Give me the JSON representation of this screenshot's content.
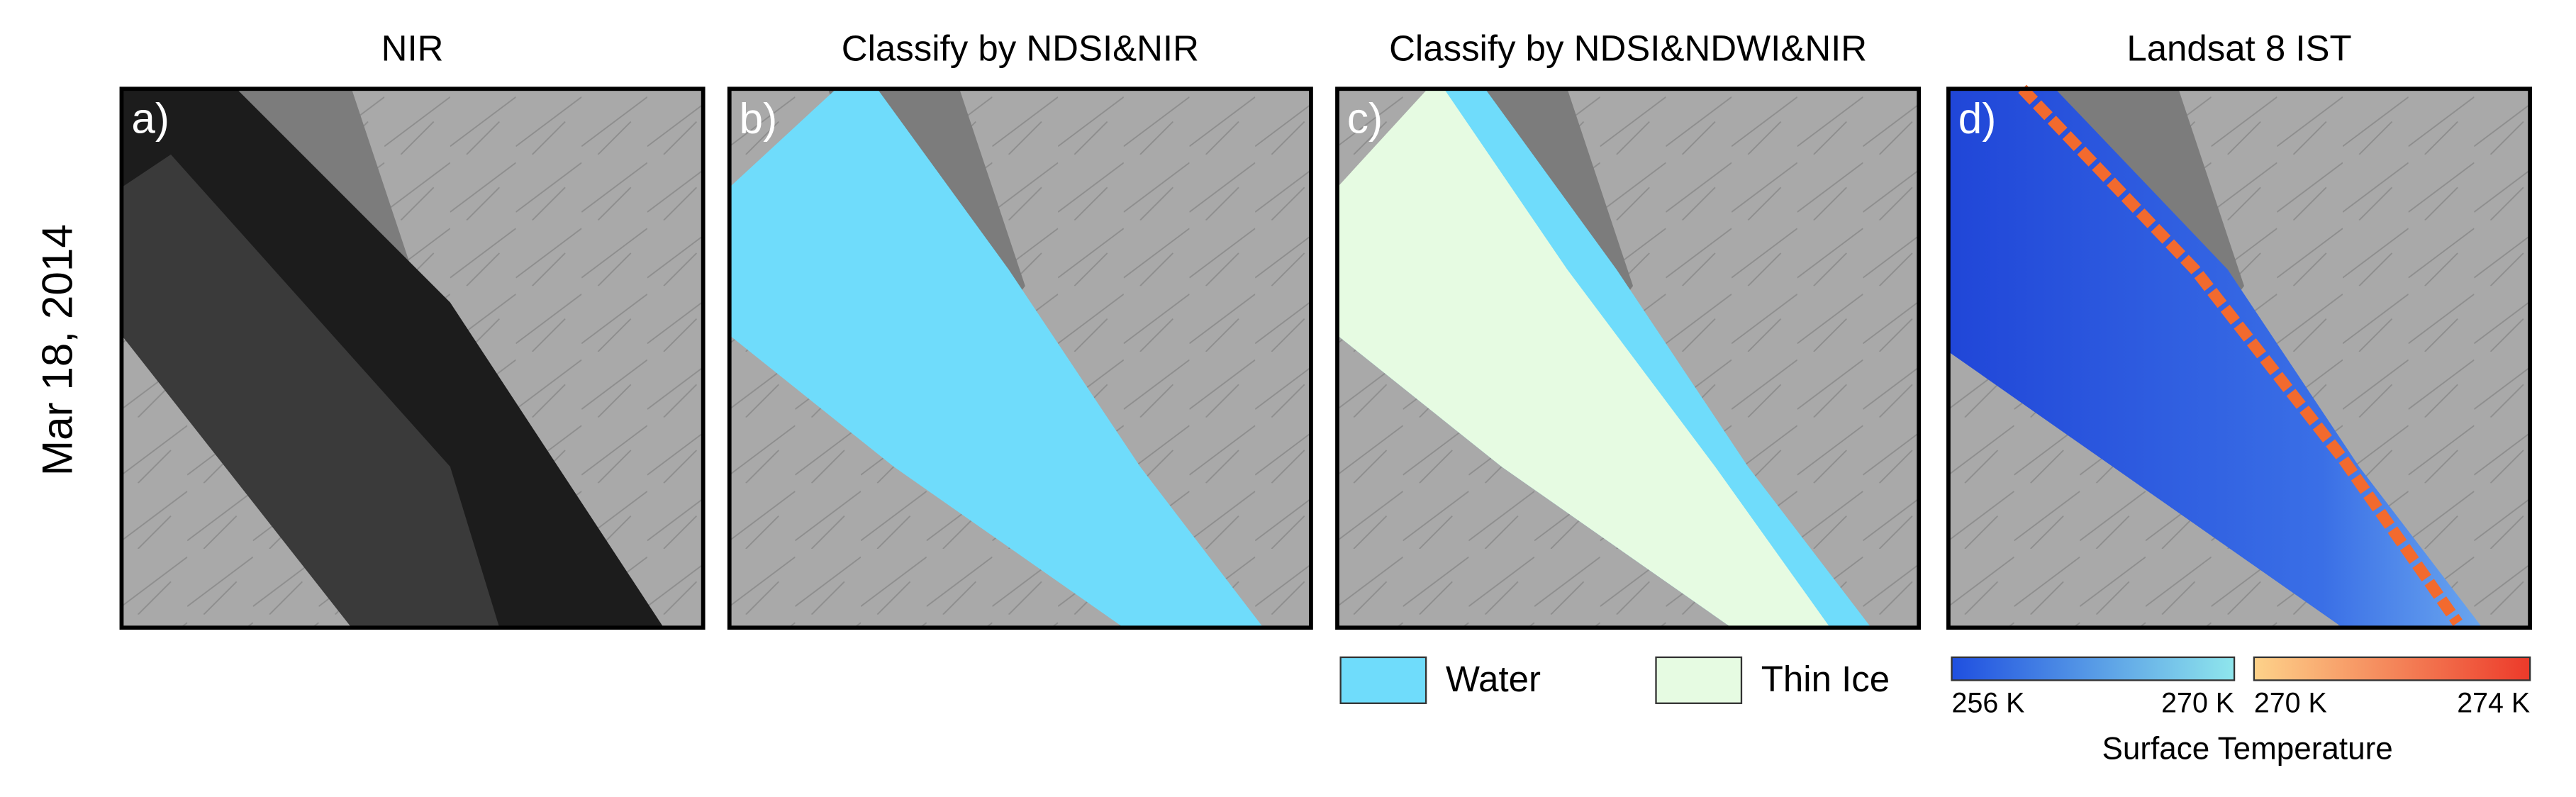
{
  "row_label": "Mar 18, 2014",
  "panels": [
    {
      "letter": "a)",
      "title": "NIR"
    },
    {
      "letter": "b)",
      "title": "Classify by NDSI&NIR"
    },
    {
      "letter": "c)",
      "title": "Classify by NDSI&NDWI&NIR"
    },
    {
      "letter": "d)",
      "title": "Landsat 8 IST"
    }
  ],
  "legend": [
    {
      "label": "Water",
      "color": "#6fdcfb"
    },
    {
      "label": "Thin Ice",
      "color": "#e6fbe2"
    }
  ],
  "colorbars": [
    {
      "from_label": "256 K",
      "to_label": "270 K",
      "colors": [
        "#1f4fe0",
        "#8fe6ec"
      ]
    },
    {
      "from_label": "270 K",
      "to_label": "274 K",
      "colors": [
        "#fdd28a",
        "#ec3a2a"
      ]
    }
  ],
  "colorbar_title": "Surface Temperature"
}
